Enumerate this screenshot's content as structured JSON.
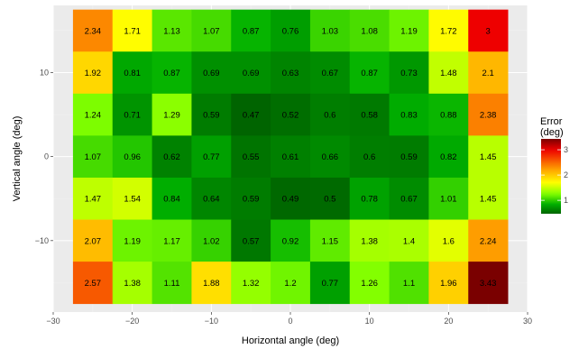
{
  "chart_data": {
    "type": "heatmap",
    "xlabel": "Horizontal angle (deg)",
    "ylabel": "Vertical angle (deg)",
    "x_centers": [
      -25,
      -20,
      -15,
      -10,
      -5,
      0,
      5,
      10,
      15,
      20,
      25
    ],
    "y_centers": [
      15,
      10,
      5,
      0,
      -5,
      -10,
      -15
    ],
    "xlim": [
      -30,
      30
    ],
    "ylim": [
      -18.5,
      18
    ],
    "x_ticks": [
      -30,
      -20,
      -10,
      0,
      10,
      20,
      30
    ],
    "x_tick_labels": [
      "−30",
      "−20",
      "−10",
      "0",
      "10",
      "20",
      "30"
    ],
    "y_ticks": [
      10,
      0,
      -10
    ],
    "y_tick_labels": [
      "10",
      "0",
      "−10"
    ],
    "values": [
      [
        "2.34",
        "1.71",
        "1.13",
        "1.07",
        "0.87",
        "0.76",
        "1.03",
        "1.08",
        "1.19",
        "1.72",
        "3"
      ],
      [
        "1.92",
        "0.81",
        "0.87",
        "0.69",
        "0.69",
        "0.63",
        "0.67",
        "0.87",
        "0.73",
        "1.48",
        "2.1"
      ],
      [
        "1.24",
        "0.71",
        "1.29",
        "0.59",
        "0.47",
        "0.52",
        "0.6",
        "0.58",
        "0.83",
        "0.88",
        "2.38"
      ],
      [
        "1.07",
        "0.96",
        "0.62",
        "0.77",
        "0.55",
        "0.61",
        "0.66",
        "0.6",
        "0.59",
        "0.82",
        "1.45"
      ],
      [
        "1.47",
        "1.54",
        "0.84",
        "0.64",
        "0.59",
        "0.49",
        "0.5",
        "0.78",
        "0.67",
        "1.01",
        "1.45"
      ],
      [
        "2.07",
        "1.19",
        "1.17",
        "1.02",
        "0.57",
        "0.92",
        "1.15",
        "1.38",
        "1.4",
        "1.6",
        "2.24"
      ],
      [
        "2.57",
        "1.38",
        "1.11",
        "1.88",
        "1.32",
        "1.2",
        "0.77",
        "1.26",
        "1.1",
        "1.96",
        "3.43"
      ]
    ],
    "color_scale": {
      "stops": [
        {
          "v": 0.47,
          "c": "#006400"
        },
        {
          "v": 0.85,
          "c": "#00b000"
        },
        {
          "v": 1.25,
          "c": "#80ff00"
        },
        {
          "v": 1.7,
          "c": "#ffff00"
        },
        {
          "v": 2.2,
          "c": "#ffa500"
        },
        {
          "v": 3.0,
          "c": "#ee0000"
        },
        {
          "v": 3.43,
          "c": "#7a0000"
        }
      ]
    },
    "grid": true,
    "legend": {
      "title_lines": [
        "Error",
        "(deg)"
      ],
      "ticks": [
        "1",
        "2",
        "3"
      ],
      "placement": "right"
    }
  },
  "colors": {
    "panel_background": "#ebebeb",
    "grid_major": "#ffffff",
    "grid_minor": "#f2f2f2",
    "tick_text": "#4d4d4d"
  }
}
